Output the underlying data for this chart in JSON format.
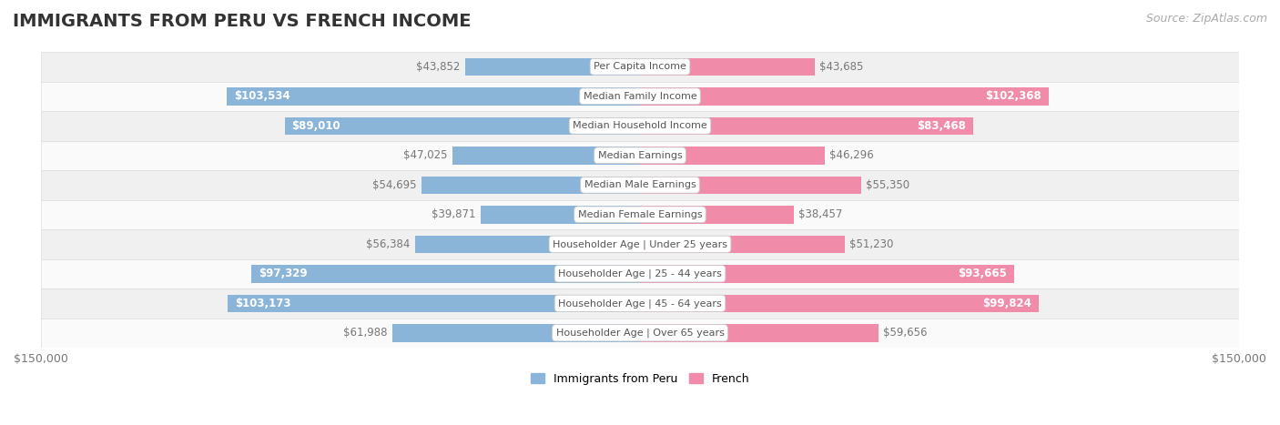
{
  "title": "IMMIGRANTS FROM PERU VS FRENCH INCOME",
  "source": "Source: ZipAtlas.com",
  "categories": [
    "Per Capita Income",
    "Median Family Income",
    "Median Household Income",
    "Median Earnings",
    "Median Male Earnings",
    "Median Female Earnings",
    "Householder Age | Under 25 years",
    "Householder Age | 25 - 44 years",
    "Householder Age | 45 - 64 years",
    "Householder Age | Over 65 years"
  ],
  "peru_values": [
    43852,
    103534,
    89010,
    47025,
    54695,
    39871,
    56384,
    97329,
    103173,
    61988
  ],
  "french_values": [
    43685,
    102368,
    83468,
    46296,
    55350,
    38457,
    51230,
    93665,
    99824,
    59656
  ],
  "peru_color": "#8ab4d8",
  "french_color": "#f08caa",
  "label_color_inside": "#ffffff",
  "label_color_outside": "#777777",
  "bar_height": 0.6,
  "max_value": 150000,
  "row_bg_even": "#f0f0f0",
  "row_bg_odd": "#fafafa",
  "row_border_color": "#dddddd",
  "category_box_color": "#ffffff",
  "category_text_color": "#555555",
  "title_fontsize": 14,
  "source_fontsize": 9,
  "label_fontsize": 8.5,
  "category_fontsize": 8,
  "axis_label_fontsize": 9,
  "legend_fontsize": 9,
  "inside_threshold": 65000
}
